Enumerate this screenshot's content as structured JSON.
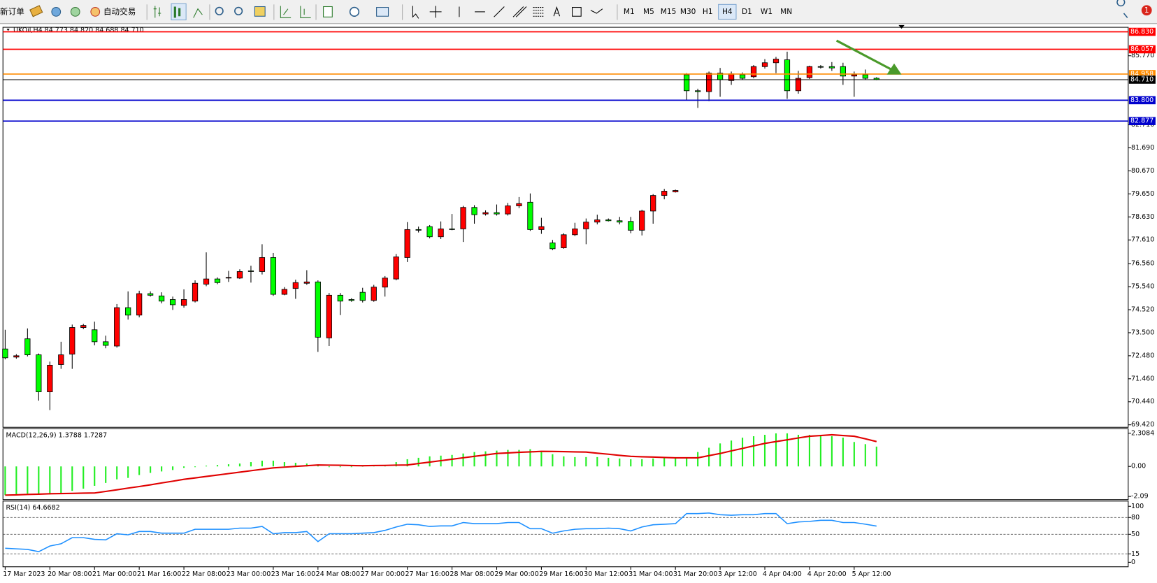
{
  "toolbar": {
    "new_order": "新订单",
    "auto_trading": "自动交易",
    "timeframes": [
      "M1",
      "M5",
      "M15",
      "M30",
      "H1",
      "H4",
      "D1",
      "W1",
      "MN"
    ],
    "active_timeframe": "H4",
    "notifications": 1
  },
  "chart_data": [
    {
      "type": "candlestick",
      "title": "UKOil,H4  84.773 84.820 84.688 84.710",
      "categories": [
        "17 Mar 2023",
        null,
        null,
        null,
        "20 Mar 08:00",
        null,
        null,
        null,
        "21 Mar 00:00",
        null,
        null,
        null,
        "21 Mar 16:00",
        null,
        null,
        null,
        "22 Mar 08:00",
        null,
        null,
        null,
        "23 Mar 00:00",
        null,
        null,
        null,
        "23 Mar 16:00",
        null,
        null,
        null,
        "24 Mar 08:00",
        null,
        null,
        null,
        "27 Mar 00:00",
        null,
        null,
        null,
        "27 Mar 16:00",
        null,
        null,
        null,
        "28 Mar 08:00",
        null,
        null,
        null,
        "29 Mar 00:00",
        null,
        null,
        null,
        "29 Mar 16:00",
        null,
        null,
        null,
        "30 Mar 12:00",
        null,
        null,
        null,
        "31 Mar 04:00",
        null,
        null,
        null,
        "31 Mar 20:00",
        null,
        null,
        null,
        "3 Apr 12:00",
        null,
        null,
        null,
        "4 Apr 04:00",
        null,
        null,
        null,
        "4 Apr 20:00",
        null,
        null,
        null,
        "5 Apr 12:00",
        null,
        null
      ],
      "open": [
        72.78,
        72.42,
        73.23,
        72.52,
        70.88,
        72.09,
        72.55,
        73.73,
        73.63,
        73.1,
        72.91,
        74.61,
        74.28,
        75.23,
        75.13,
        74.97,
        74.71,
        74.9,
        75.65,
        75.88,
        75.92,
        75.92,
        76.24,
        76.21,
        76.83,
        75.2,
        75.46,
        75.69,
        75.75,
        73.27,
        75.16,
        74.97,
        75.29,
        74.93,
        75.52,
        75.88,
        76.83,
        78.07,
        78.2,
        77.75,
        78.1,
        78.1,
        79.05,
        78.76,
        78.82,
        78.76,
        79.12,
        79.28,
        78.07,
        77.48,
        77.26,
        77.84,
        78.1,
        78.4,
        78.5,
        78.46,
        78.43,
        78.04,
        78.89,
        79.58,
        79.74,
        84.93,
        84.22,
        84.18,
        85.0,
        84.67,
        84.93,
        84.84,
        85.29,
        85.46,
        85.59,
        84.22,
        84.8,
        85.29,
        85.29,
        85.29,
        84.87,
        84.93,
        84.773
      ],
      "high": [
        73.63,
        72.55,
        73.69,
        72.58,
        72.22,
        73.1,
        73.86,
        73.89,
        73.99,
        73.37,
        74.77,
        75.33,
        75.36,
        75.33,
        75.29,
        75.1,
        75.42,
        75.82,
        77.06,
        75.95,
        76.24,
        76.31,
        76.47,
        77.42,
        77.03,
        75.52,
        75.85,
        76.27,
        75.82,
        75.26,
        75.26,
        75.03,
        75.49,
        75.62,
        76.01,
        76.99,
        78.4,
        78.2,
        78.27,
        78.43,
        78.76,
        79.12,
        79.15,
        78.92,
        79.18,
        79.25,
        79.51,
        79.67,
        78.59,
        77.61,
        77.91,
        78.37,
        78.56,
        78.73,
        78.56,
        78.63,
        78.63,
        78.95,
        79.64,
        79.87,
        79.84,
        85.0,
        84.31,
        85.07,
        85.23,
        85.07,
        85.03,
        85.36,
        85.62,
        85.72,
        85.95,
        85.1,
        85.33,
        85.36,
        85.49,
        85.46,
        85.07,
        85.16,
        84.82
      ],
      "low": [
        72.32,
        72.35,
        72.45,
        70.49,
        70.07,
        71.9,
        71.9,
        73.66,
        72.94,
        72.81,
        72.84,
        74.08,
        74.18,
        75.1,
        74.8,
        74.51,
        74.61,
        74.84,
        75.56,
        75.65,
        75.75,
        75.88,
        75.72,
        76.08,
        75.13,
        75.16,
        75.0,
        75.62,
        72.65,
        72.91,
        74.28,
        74.87,
        74.84,
        74.87,
        75.1,
        75.82,
        76.63,
        77.94,
        77.68,
        77.65,
        78.04,
        77.52,
        78.33,
        78.69,
        78.69,
        78.69,
        79.02,
        78.01,
        77.88,
        77.16,
        77.22,
        77.78,
        77.42,
        78.3,
        78.43,
        78.3,
        77.91,
        77.81,
        78.33,
        79.41,
        79.71,
        83.82,
        83.46,
        83.76,
        83.95,
        84.48,
        84.71,
        84.77,
        85.2,
        85.0,
        83.86,
        84.09,
        84.74,
        85.2,
        85.1,
        84.48,
        83.95,
        84.71,
        84.688
      ],
      "close": [
        72.39,
        72.48,
        72.52,
        70.88,
        72.06,
        72.52,
        73.73,
        73.82,
        73.1,
        72.94,
        74.61,
        74.28,
        75.23,
        75.16,
        74.9,
        74.74,
        74.97,
        75.69,
        75.88,
        75.72,
        75.95,
        76.21,
        76.21,
        76.83,
        75.2,
        75.42,
        75.72,
        75.75,
        73.3,
        75.16,
        74.9,
        74.93,
        74.93,
        75.52,
        75.92,
        76.86,
        78.07,
        78.04,
        77.75,
        78.1,
        78.07,
        79.05,
        78.73,
        78.82,
        78.76,
        79.12,
        79.22,
        78.07,
        78.2,
        77.22,
        77.84,
        78.1,
        78.4,
        78.5,
        78.46,
        78.4,
        78.04,
        78.89,
        79.58,
        79.77,
        79.8,
        84.22,
        84.18,
        85.0,
        84.71,
        84.97,
        84.77,
        85.29,
        85.46,
        85.62,
        84.22,
        84.77,
        85.29,
        85.26,
        85.23,
        84.87,
        84.93,
        84.77,
        84.71
      ],
      "up_color": "#ff0000",
      "down_color": "#00ff00",
      "ylim": [
        69.31,
        87.03
      ],
      "yticks": [
        {
          "value": 85.77,
          "label": "85.770"
        },
        {
          "value": 82.71,
          "label": "82.710"
        },
        {
          "value": 81.69,
          "label": "81.690"
        },
        {
          "value": 80.67,
          "label": "80.670"
        },
        {
          "value": 79.65,
          "label": "79.650"
        },
        {
          "value": 78.63,
          "label": "78.630"
        },
        {
          "value": 77.61,
          "label": "77.610"
        },
        {
          "value": 76.56,
          "label": "76.560"
        },
        {
          "value": 75.54,
          "label": "75.540"
        },
        {
          "value": 74.52,
          "label": "74.520"
        },
        {
          "value": 73.5,
          "label": "73.500"
        },
        {
          "value": 72.48,
          "label": "72.480"
        },
        {
          "value": 71.46,
          "label": "71.460"
        },
        {
          "value": 70.44,
          "label": "70.440"
        },
        {
          "value": 69.42,
          "label": "69.420"
        }
      ],
      "hlines": [
        {
          "value": 86.83,
          "label": "86.830",
          "color": "#ff0000"
        },
        {
          "value": 86.057,
          "label": "86.057",
          "color": "#ff0000"
        },
        {
          "value": 84.958,
          "label": "84.958",
          "color": "#ff8c00"
        },
        {
          "value": 84.71,
          "label": "84.710",
          "color": "#000000"
        },
        {
          "value": 83.8,
          "label": "83.800",
          "color": "#0000cd"
        },
        {
          "value": 82.877,
          "label": "82.877",
          "color": "#0000cd"
        }
      ]
    },
    {
      "type": "macd",
      "title": "MACD(12,26,9) 1.3788 1.7287",
      "histogram": [
        -2.0,
        -1.95,
        -1.9,
        -1.9,
        -1.95,
        -1.85,
        -1.7,
        -1.55,
        -1.35,
        -1.15,
        -0.9,
        -0.8,
        -0.6,
        -0.45,
        -0.35,
        -0.25,
        -0.1,
        -0.05,
        0.05,
        0.1,
        0.15,
        0.2,
        0.3,
        0.4,
        0.4,
        0.3,
        0.25,
        0.2,
        0.1,
        -0.05,
        -0.05,
        -0.05,
        -0.02,
        0.02,
        0.1,
        0.3,
        0.5,
        0.6,
        0.7,
        0.75,
        0.8,
        0.9,
        1.0,
        1.05,
        1.1,
        1.15,
        1.15,
        1.2,
        1.0,
        0.85,
        0.7,
        0.65,
        0.65,
        0.65,
        0.6,
        0.55,
        0.5,
        0.5,
        0.55,
        0.6,
        0.6,
        0.6,
        1.0,
        1.3,
        1.6,
        1.8,
        2.0,
        2.1,
        2.2,
        2.3,
        2.3,
        2.2,
        2.2,
        2.2,
        2.1,
        2.0,
        1.7,
        1.55,
        1.3788
      ],
      "signal": [
        -2.0,
        -1.98,
        -1.95,
        -1.93,
        -1.9,
        -1.89,
        -1.88,
        -1.86,
        -1.85,
        -1.74,
        -1.63,
        -1.51,
        -1.4,
        -1.28,
        -1.15,
        -1.03,
        -0.9,
        -0.8,
        -0.7,
        -0.6,
        -0.5,
        -0.4,
        -0.3,
        -0.2,
        -0.1,
        -0.05,
        0.0,
        0.05,
        0.1,
        0.09,
        0.08,
        0.06,
        0.05,
        0.06,
        0.07,
        0.09,
        0.1,
        0.2,
        0.3,
        0.4,
        0.5,
        0.6,
        0.7,
        0.8,
        0.9,
        0.94,
        0.98,
        1.01,
        1.05,
        1.04,
        1.03,
        1.01,
        1.0,
        0.92,
        0.85,
        0.77,
        0.7,
        0.67,
        0.65,
        0.62,
        0.6,
        0.6,
        0.6,
        0.75,
        0.9,
        1.08,
        1.25,
        1.43,
        1.6,
        1.73,
        1.85,
        1.98,
        2.1,
        2.15,
        2.2,
        2.15,
        2.1,
        1.92,
        1.7287
      ],
      "histogram_color": "#22ee22",
      "signal_color": "#e00000",
      "ylim": [
        -2.31,
        2.62
      ],
      "yticks": [
        2.3084,
        {
          "value": 0,
          "label": "0.00"
        },
        -2.09
      ]
    },
    {
      "type": "line",
      "title": "RSI(14) 64.6682",
      "values": [
        25,
        24,
        23,
        19,
        29,
        33,
        44,
        44,
        41,
        40,
        51,
        49,
        55,
        55,
        52,
        52,
        52,
        59,
        59,
        59,
        59,
        61,
        61,
        64,
        51,
        53,
        53,
        55,
        37,
        51,
        51,
        51,
        52,
        53,
        57,
        63,
        68,
        67,
        64,
        65,
        65,
        71,
        69,
        69,
        69,
        71,
        71,
        60,
        60,
        52,
        56,
        59,
        60,
        60,
        61,
        60,
        56,
        63,
        67,
        68,
        69,
        87,
        87,
        88,
        85,
        84,
        85,
        85,
        87,
        87,
        69,
        72,
        73,
        75,
        75,
        71,
        71,
        68,
        64.6682
      ],
      "color": "#1e90ff",
      "ylim": [
        -8,
        109.3
      ],
      "yticks": [
        100,
        80,
        50,
        15,
        0
      ],
      "levels": [
        80,
        50,
        15
      ]
    }
  ]
}
